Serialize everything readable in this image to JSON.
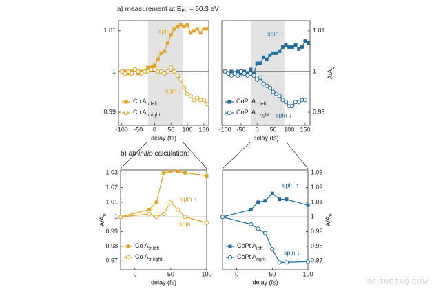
{
  "headings": {
    "a": {
      "text": "a) measurement at E",
      "sub": "Ph",
      "end": " = 60.3 eV"
    },
    "b": {
      "start": "b) ",
      "italic": "ab-initio",
      "end": " calculation:"
    }
  },
  "watermark": "SCIENCEAQ.COM",
  "chart_data": [
    {
      "type": "line",
      "xlabel": "delay (fs)",
      "xlim": [
        -110,
        165
      ],
      "xticks": [
        -100,
        -50,
        0,
        50,
        100,
        150
      ],
      "ylim": [
        0.9868,
        1.0125
      ],
      "yticks": [
        0.99,
        1,
        1.01
      ],
      "y_axis_side": "left",
      "shade": [
        -20,
        85
      ],
      "hline": 1,
      "legend": "lower left",
      "spin_up": "spin ↑",
      "spin_down": "spin ↓",
      "x": [
        -100,
        -90,
        -80,
        -70,
        -60,
        -50,
        -40,
        -30,
        -20,
        -10,
        0,
        10,
        20,
        30,
        40,
        50,
        60,
        70,
        80,
        90,
        100,
        110,
        120,
        130,
        140,
        150,
        160
      ],
      "series": [
        {
          "name": "Co A",
          "name_sub": "σ left",
          "color": "#e6a41e",
          "marker": "square",
          "filled": true,
          "values": [
            1.0,
            1.0,
            0.9995,
            1.0,
            1.0005,
            0.9995,
            1.0,
            1.0,
            1.001,
            1.001,
            1.0015,
            1.003,
            1.0045,
            1.005,
            1.007,
            1.009,
            1.0105,
            1.011,
            1.0115,
            1.011,
            1.0115,
            1.0095,
            1.01,
            1.0105,
            1.0095,
            1.0105,
            1.0105
          ]
        },
        {
          "name": "Co A",
          "name_sub": "σ right",
          "color": "#e6a41e",
          "marker": "circle",
          "filled": false,
          "values": [
            1.0,
            0.9995,
            1.0,
            0.9995,
            1.0005,
            1.0,
            0.9995,
            1.0,
            1.0,
            1.0005,
            1.0005,
            1.0,
            1.0,
            0.9995,
            1.0,
            1.001,
            1.0,
            0.999,
            0.998,
            0.996,
            0.9945,
            0.994,
            0.993,
            0.9935,
            0.993,
            0.993,
            0.992
          ]
        }
      ]
    },
    {
      "type": "line",
      "xlabel": "delay (fs)",
      "ylabel": "A/A",
      "ylabel_sub": "0",
      "xlim": [
        -110,
        165
      ],
      "xticks": [
        -100,
        -50,
        0,
        50,
        100,
        150
      ],
      "ylim": [
        0.9868,
        1.0125
      ],
      "yticks": [
        0.99,
        1,
        1.01
      ],
      "y_axis_side": "right",
      "shade": [
        -20,
        85
      ],
      "hline": 1,
      "legend": "lower left",
      "spin_up": "spin ↑",
      "spin_down": "spin ↓",
      "x": [
        -100,
        -90,
        -80,
        -70,
        -60,
        -50,
        -40,
        -30,
        -20,
        -10,
        0,
        10,
        20,
        30,
        40,
        50,
        60,
        70,
        80,
        90,
        100,
        110,
        120,
        130,
        140,
        150,
        160
      ],
      "series": [
        {
          "name": "CoPt A",
          "name_sub": "σ left",
          "color": "#1f6e9e",
          "marker": "square",
          "filled": true,
          "values": [
            1.0,
            0.9995,
            1.0,
            0.9995,
            1.0,
            0.9995,
            1.0,
            0.9995,
            1.0005,
            0.9995,
            1.002,
            1.002,
            1.0035,
            1.003,
            1.004,
            1.0045,
            1.0045,
            1.005,
            1.006,
            1.0065,
            1.006,
            1.006,
            1.0065,
            1.0055,
            1.006,
            1.0075,
            1.007
          ]
        },
        {
          "name": "CoPt A",
          "name_sub": "σ right",
          "color": "#1f6e9e",
          "marker": "circle",
          "filled": false,
          "values": [
            1.0,
            0.9995,
            0.999,
            0.9995,
            0.999,
            1.0,
            0.9995,
            0.999,
            0.9995,
            0.999,
            0.998,
            0.9985,
            0.997,
            0.9965,
            0.996,
            0.995,
            0.9945,
            0.994,
            0.993,
            0.9925,
            0.9915,
            0.9915,
            0.9925,
            0.9925,
            0.993,
            0.993,
            null
          ]
        }
      ]
    },
    {
      "type": "line",
      "xlabel": "delay (fs)",
      "ylabel": "A/A",
      "ylabel_sub": "0",
      "xlim": [
        -20,
        100
      ],
      "xticks": [
        0,
        50,
        100
      ],
      "ylim": [
        0.964,
        1.032
      ],
      "yticks": [
        0.97,
        0.98,
        0.99,
        1,
        1.01,
        1.02,
        1.03
      ],
      "y_axis_side": "left",
      "hline": 1,
      "legend": "lower left",
      "spin_up": "spin ↑",
      "spin_down": "spin ↓",
      "x": [
        -20,
        20,
        30,
        40,
        50,
        60,
        70,
        100
      ],
      "series": [
        {
          "name": "Co A",
          "name_sub": "σ left",
          "color": "#e6a41e",
          "marker": "square",
          "filled": true,
          "values": [
            1.0,
            1.005,
            1.01,
            1.03,
            1.031,
            1.031,
            1.03,
            1.028
          ]
        },
        {
          "name": "Co A",
          "name_sub": "σ right",
          "color": "#e6a41e",
          "marker": "circle",
          "filled": false,
          "values": [
            1.0,
            1.002,
            1.0,
            1.002,
            1.01,
            1.005,
            1.0,
            0.996
          ]
        }
      ]
    },
    {
      "type": "line",
      "xlabel": "delay (fs)",
      "ylabel": "A/A",
      "ylabel_sub": "0",
      "xlim": [
        -20,
        100
      ],
      "xticks": [
        0,
        50,
        100
      ],
      "ylim": [
        0.964,
        1.032
      ],
      "yticks": [
        0.97,
        0.98,
        0.99,
        1,
        1.01,
        1.02,
        1.03
      ],
      "y_axis_side": "right",
      "hline": 1,
      "legend": "lower left",
      "spin_up": "spin ↑",
      "spin_down": "spin ↓",
      "x": [
        -20,
        20,
        30,
        40,
        50,
        60,
        70,
        100
      ],
      "series": [
        {
          "name": "CoPt A",
          "name_sub": "left",
          "color": "#1f6e9e",
          "marker": "square",
          "filled": true,
          "values": [
            1.0,
            1.005,
            1.01,
            1.011,
            1.016,
            1.012,
            1.012,
            1.008
          ]
        },
        {
          "name": "CoPt A",
          "name_sub": "right",
          "color": "#1f6e9e",
          "marker": "circle",
          "filled": false,
          "values": [
            1.0,
            0.995,
            0.992,
            0.989,
            0.978,
            0.969,
            0.969,
            0.9695
          ]
        }
      ]
    }
  ]
}
